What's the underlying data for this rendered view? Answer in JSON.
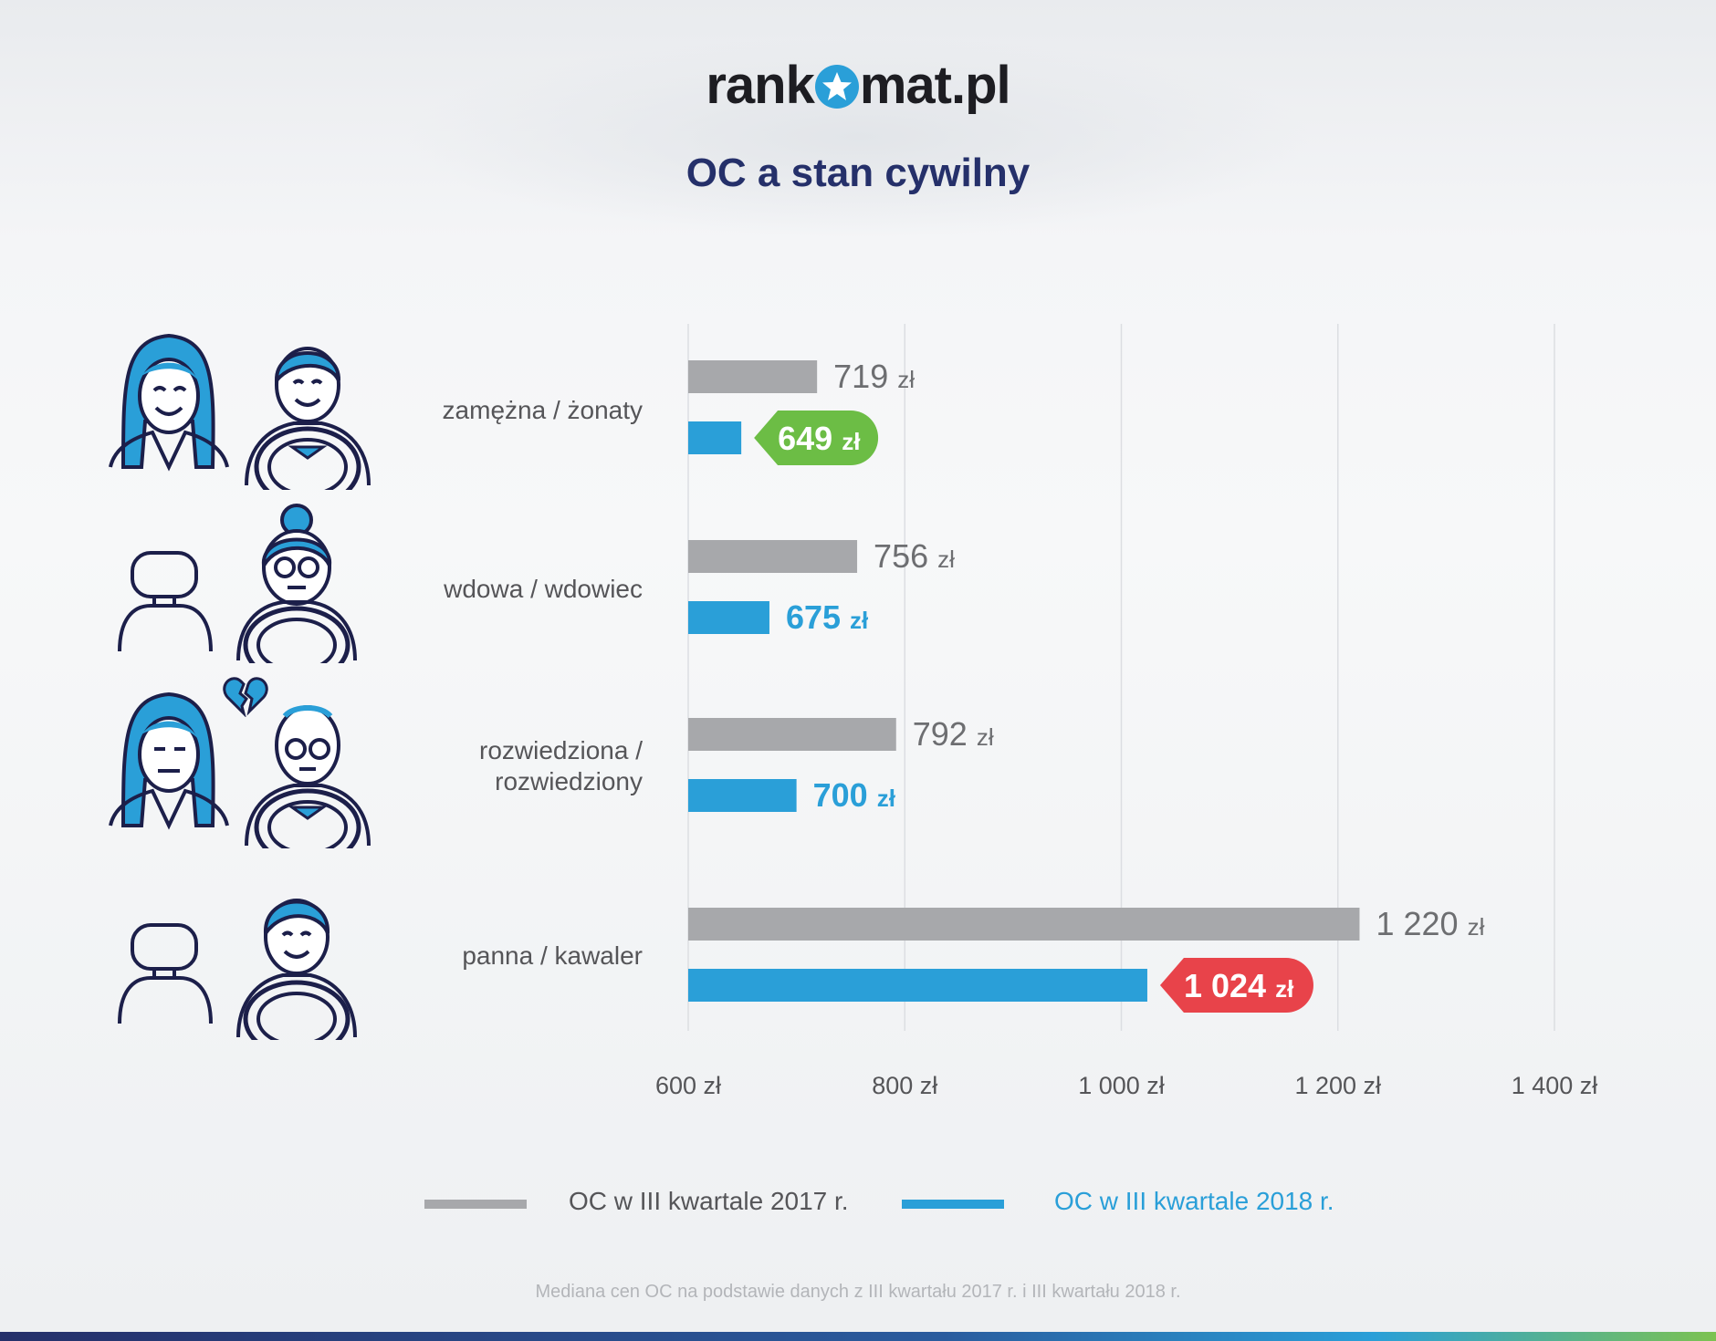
{
  "header": {
    "logo_text": "rankomat.pl",
    "title": "OC a stan cywilny"
  },
  "chart_data": {
    "type": "bar",
    "orientation": "horizontal",
    "categories": [
      "zamężna / żonaty",
      "wdowa / wdowiec",
      "rozwiedziona / rozwiedziony",
      "panna / kawaler"
    ],
    "series": [
      {
        "name": "OC w III kwartale 2017 r.",
        "color": "#a7a8ab",
        "values": [
          719,
          756,
          792,
          1220
        ]
      },
      {
        "name": "OC w III kwartale 2018 r.",
        "color": "#2a9fd8",
        "values": [
          649,
          675,
          700,
          1024
        ]
      }
    ],
    "value_unit": "zł",
    "value_labels": {
      "2017": [
        "719",
        "756",
        "792",
        "1 220"
      ],
      "2018": [
        "649",
        "675",
        "700",
        "1 024"
      ]
    },
    "highlights": {
      "min_2018_color": "#6cbd45",
      "max_2018_color": "#e8434a"
    },
    "xlim": [
      600,
      1400
    ],
    "ticks": [
      600,
      800,
      1000,
      1200,
      1400
    ],
    "tick_labels": [
      "600 zł",
      "800 zł",
      "1 000 zł",
      "1 200 zł",
      "1 400 zł"
    ],
    "grid": true
  },
  "labels": {
    "cat1": "zamężna / żonaty",
    "cat2": "wdowa / wdowiec",
    "cat3a": "rozwiedziona /",
    "cat3b": "rozwiedziony",
    "cat4": "panna / kawaler"
  },
  "legend": {
    "item2017": "OC w III kwartale 2017 r.",
    "item2018": "OC w III kwartale 2018 r."
  },
  "footnote": "Mediana cen OC na podstawie danych z III kwartału 2017 r. i III kwartału 2018 r.",
  "colors": {
    "navy": "#25306a",
    "blue": "#2a9fd8",
    "gray": "#a7a8ab",
    "green": "#6cbd45",
    "red": "#e8434a"
  }
}
